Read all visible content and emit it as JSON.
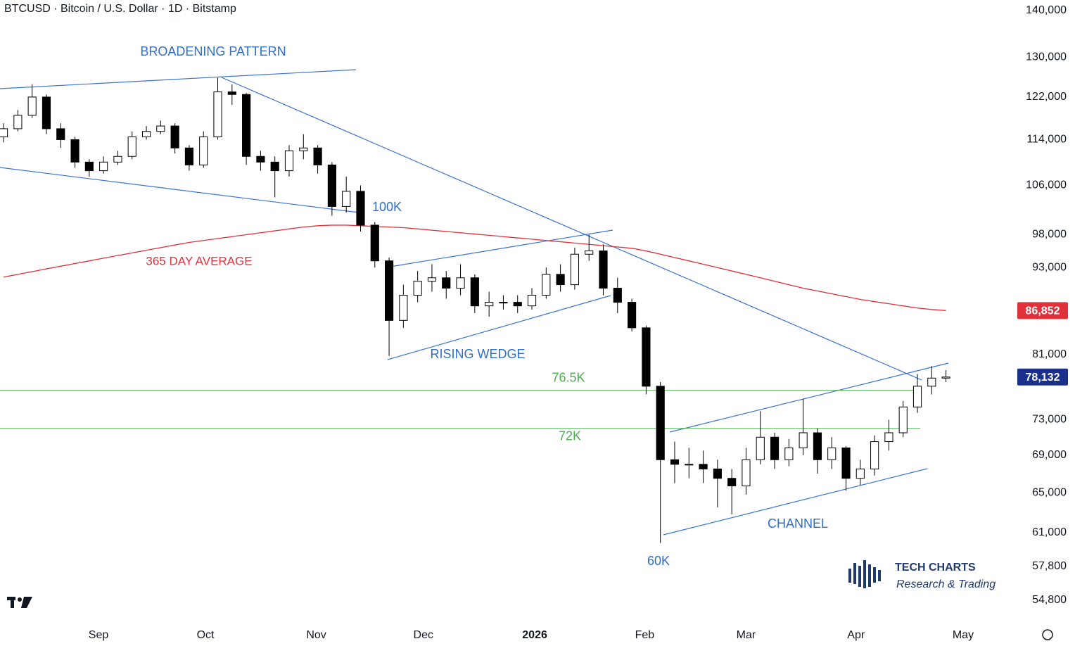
{
  "chart_data": {
    "type": "candlestick",
    "title": "BTCUSD · Bitcoin / U.S. Dollar · 1D · Bitstamp",
    "categories": [
      null,
      null,
      null,
      null,
      null,
      null,
      null,
      null,
      null,
      null,
      null,
      null,
      null,
      null,
      null,
      null,
      null,
      null,
      null,
      null,
      null,
      null,
      null,
      null,
      null,
      null,
      null,
      null,
      null,
      null,
      null,
      null,
      null,
      null,
      null,
      null,
      null,
      null,
      null,
      null,
      null,
      null,
      null,
      null,
      null,
      null,
      null,
      null,
      null,
      null,
      null,
      null,
      null,
      null,
      null,
      null,
      null,
      null,
      null,
      null,
      null,
      null,
      null,
      null,
      null,
      null,
      null
    ],
    "open": [
      114500,
      116000,
      118500,
      122000,
      116000,
      114000,
      110000,
      108500,
      110000,
      111000,
      114500,
      115500,
      116500,
      112500,
      109500,
      114500,
      123000,
      122500,
      111000,
      110000,
      108500,
      112000,
      112500,
      109500,
      102500,
      105000,
      99500,
      94000,
      85500,
      89000,
      91000,
      91500,
      90000,
      91500,
      87500,
      88000,
      88000,
      87500,
      89000,
      92000,
      90500,
      95000,
      95500,
      90000,
      88000,
      84500,
      77000,
      68500,
      68000,
      68000,
      67500,
      66500,
      65700,
      68500,
      71000,
      68500,
      69800,
      71500,
      68500,
      69800,
      66500,
      67500,
      70500,
      71500,
      74500,
      77000,
      78000
    ],
    "high": [
      117000,
      119500,
      124500,
      122500,
      117000,
      114500,
      110500,
      111000,
      112000,
      115500,
      116500,
      117500,
      117000,
      113000,
      115500,
      125800,
      124500,
      122800,
      112000,
      111000,
      113000,
      115000,
      113000,
      110000,
      107500,
      106000,
      100000,
      94500,
      90500,
      92500,
      93500,
      92500,
      93500,
      92000,
      89500,
      89000,
      89000,
      90000,
      93000,
      93500,
      96000,
      98000,
      96500,
      91500,
      88500,
      84800,
      77500,
      70500,
      69800,
      69500,
      68500,
      67500,
      69800,
      74000,
      71500,
      70800,
      75500,
      72000,
      71000,
      70000,
      68500,
      71200,
      73000,
      75200,
      78500,
      79500,
      79000
    ],
    "low": [
      113500,
      115500,
      118000,
      115000,
      112500,
      109000,
      107500,
      108000,
      109500,
      110500,
      114000,
      115000,
      111500,
      108500,
      109000,
      114000,
      120500,
      109500,
      108500,
      104000,
      107500,
      110500,
      108000,
      101000,
      101500,
      98500,
      93000,
      80800,
      84500,
      88000,
      89500,
      88500,
      89000,
      86500,
      86000,
      87000,
      86500,
      87000,
      88500,
      89500,
      89800,
      94000,
      89000,
      86500,
      84000,
      76000,
      60000,
      66000,
      66500,
      66000,
      63500,
      62800,
      64800,
      68000,
      67500,
      67800,
      69000,
      67000,
      67500,
      65200,
      65800,
      66800,
      69500,
      71000,
      73800,
      76000,
      77500
    ],
    "close": [
      116000,
      118500,
      122000,
      116000,
      114000,
      110000,
      108500,
      110000,
      111000,
      114500,
      115500,
      116500,
      112500,
      109500,
      114500,
      123000,
      122500,
      111000,
      110000,
      108500,
      112000,
      112500,
      109500,
      102500,
      105000,
      99500,
      94000,
      85500,
      89000,
      91000,
      91500,
      90000,
      91500,
      87500,
      88000,
      88000,
      87500,
      89000,
      92000,
      90500,
      95000,
      95500,
      90000,
      88000,
      84500,
      77000,
      68500,
      68000,
      68000,
      67500,
      66500,
      65700,
      68500,
      71000,
      68500,
      69800,
      71500,
      68500,
      69800,
      66500,
      67500,
      70500,
      71500,
      74500,
      77000,
      78000,
      78132
    ],
    "close_label": "78,132",
    "moving_average": {
      "name": "365 DAY AVERAGE",
      "color": "#e0313b",
      "last_label": "86,852",
      "values": [
        91600,
        92000,
        92400,
        92800,
        93200,
        93600,
        94000,
        94400,
        94800,
        95200,
        95600,
        96000,
        96400,
        96800,
        97100,
        97400,
        97700,
        98000,
        98300,
        98600,
        98900,
        99200,
        99400,
        99500,
        99500,
        99400,
        99300,
        99200,
        99100,
        98900,
        98700,
        98500,
        98300,
        98100,
        97900,
        97700,
        97500,
        97300,
        97100,
        96900,
        96700,
        96500,
        96300,
        96100,
        95900,
        95500,
        95000,
        94500,
        94000,
        93500,
        93000,
        92500,
        92000,
        91500,
        91000,
        90500,
        90000,
        89600,
        89200,
        88800,
        88400,
        88100,
        87800,
        87500,
        87200,
        87000,
        86852
      ]
    },
    "levels": [
      {
        "value": 76500,
        "label": "76.5K",
        "color": "#4caf50"
      },
      {
        "value": 72000,
        "label": "72K",
        "color": "#4caf50"
      }
    ],
    "annotations": [
      "BROADENING PATTERN",
      "100K",
      "RISING WEDGE",
      "CHANNEL",
      "60K"
    ],
    "annotation_color": "#2f6fc9",
    "log_scale": true,
    "ylim": [
      53140,
      142370
    ],
    "yticks": [
      {
        "value": 140000,
        "label": "140,000"
      },
      {
        "value": 130000,
        "label": "130,000"
      },
      {
        "value": 122000,
        "label": "122,000"
      },
      {
        "value": 114000,
        "label": "114,000"
      },
      {
        "value": 106000,
        "label": "106,000"
      },
      {
        "value": 98000,
        "label": "98,000"
      },
      {
        "value": 93000,
        "label": "93,000"
      },
      {
        "value": 81000,
        "label": "81,000"
      },
      {
        "value": 73000,
        "label": "73,000"
      },
      {
        "value": 69000,
        "label": "69,000"
      },
      {
        "value": 65000,
        "label": "65,000"
      },
      {
        "value": 61000,
        "label": "61,000"
      },
      {
        "value": 57800,
        "label": "57,800"
      },
      {
        "value": 54800,
        "label": "54,800"
      }
    ],
    "xlim": [
      -0.25,
      70.7
    ],
    "xticks": [
      {
        "value": 6.65,
        "label": "Sep"
      },
      {
        "value": 14.14,
        "label": "Oct"
      },
      {
        "value": 21.9,
        "label": "Nov"
      },
      {
        "value": 29.4,
        "label": "Dec"
      },
      {
        "value": 37.2,
        "label": "2026"
      },
      {
        "value": 44.9,
        "label": "Feb"
      },
      {
        "value": 52.0,
        "label": "Mar"
      },
      {
        "value": 59.7,
        "label": "Apr"
      },
      {
        "value": 67.2,
        "label": "May"
      }
    ],
    "logo": {
      "title": "TECH CHARTS",
      "subtitle": "Research & Trading"
    }
  }
}
